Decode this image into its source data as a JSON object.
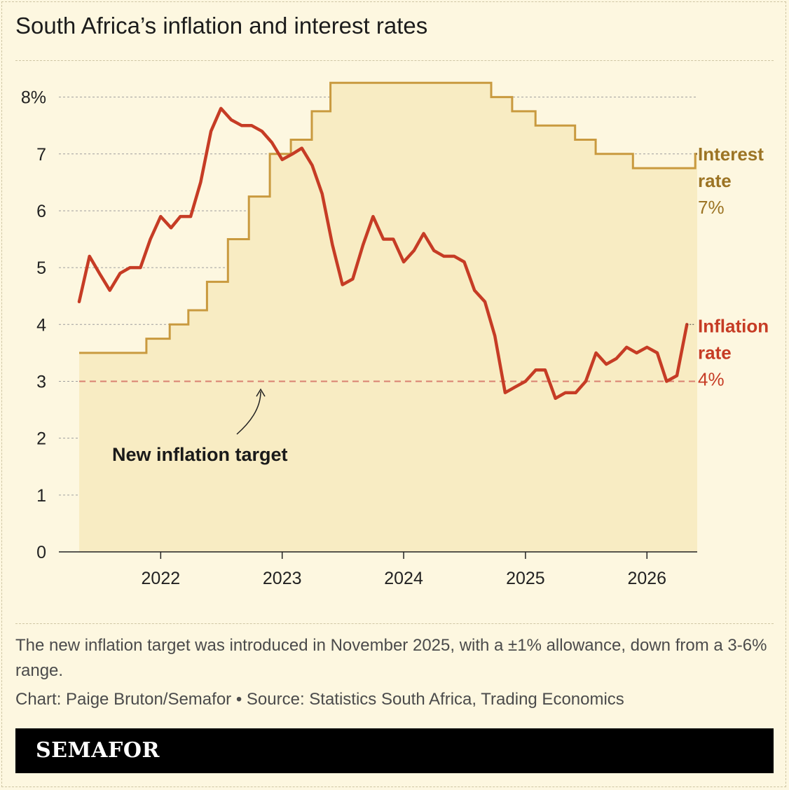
{
  "header": {
    "title": "South Africa’s inflation and interest rates"
  },
  "notes": {
    "description": "The new inflation target was introduced in November 2025, with a ±1% allowance, down from a 3-6% range.",
    "credit": "Chart: Paige Bruton/Semafor • Source: Statistics South Africa, Trading Economics"
  },
  "footer": {
    "logo": "SEMAFOR"
  },
  "chart_data": {
    "type": "line",
    "title": "South Africa’s inflation and interest rates",
    "xlabel": "",
    "ylabel": "",
    "x_ticks": [
      "2022",
      "2023",
      "2024",
      "2025",
      "2026"
    ],
    "y_ticks": [
      "0",
      "1",
      "2",
      "3",
      "4",
      "5",
      "6",
      "7",
      "8%"
    ],
    "ylim": [
      0,
      8.5
    ],
    "xlim": [
      "2021-03",
      "2026-06"
    ],
    "grid": true,
    "colors": {
      "interest": "#c99a3f",
      "interest_label": "#9c7424",
      "inflation": "#c63c25",
      "target": "#d98070",
      "area": "#f8ecc3"
    },
    "series": [
      {
        "name": "Interest rate",
        "label_lines": [
          "Interest",
          "rate"
        ],
        "end_label": "7%",
        "step": true,
        "points": [
          [
            "2021-05-01",
            3.5
          ],
          [
            "2021-11-19",
            3.75
          ],
          [
            "2022-01-28",
            4.0
          ],
          [
            "2022-03-25",
            4.25
          ],
          [
            "2022-05-20",
            4.75
          ],
          [
            "2022-07-22",
            5.5
          ],
          [
            "2022-09-23",
            6.25
          ],
          [
            "2022-11-25",
            7.0
          ],
          [
            "2023-01-27",
            7.25
          ],
          [
            "2023-03-31",
            7.75
          ],
          [
            "2023-05-26",
            8.25
          ],
          [
            "2024-09-20",
            8.0
          ],
          [
            "2024-11-22",
            7.75
          ],
          [
            "2025-01-31",
            7.5
          ],
          [
            "2025-05-30",
            7.25
          ],
          [
            "2025-07-31",
            7.0
          ],
          [
            "2025-11-20",
            6.75
          ],
          [
            "2026-05-26",
            7.0
          ],
          [
            "2026-06-01",
            7.0
          ]
        ]
      },
      {
        "name": "Inflation rate",
        "label_lines": [
          "Inflation",
          "rate"
        ],
        "end_label": "4%",
        "step": false,
        "points": [
          [
            "2021-05-01",
            4.4
          ],
          [
            "2021-06-01",
            5.2
          ],
          [
            "2021-07-01",
            4.9
          ],
          [
            "2021-08-01",
            4.6
          ],
          [
            "2021-09-01",
            4.9
          ],
          [
            "2021-10-01",
            5.0
          ],
          [
            "2021-11-01",
            5.0
          ],
          [
            "2021-12-01",
            5.5
          ],
          [
            "2022-01-01",
            5.9
          ],
          [
            "2022-02-01",
            5.7
          ],
          [
            "2022-03-01",
            5.9
          ],
          [
            "2022-04-01",
            5.9
          ],
          [
            "2022-05-01",
            6.5
          ],
          [
            "2022-06-01",
            7.4
          ],
          [
            "2022-07-01",
            7.8
          ],
          [
            "2022-08-01",
            7.6
          ],
          [
            "2022-09-01",
            7.5
          ],
          [
            "2022-10-01",
            7.5
          ],
          [
            "2022-11-01",
            7.4
          ],
          [
            "2022-12-01",
            7.2
          ],
          [
            "2023-01-01",
            6.9
          ],
          [
            "2023-02-01",
            7.0
          ],
          [
            "2023-03-01",
            7.1
          ],
          [
            "2023-04-01",
            6.8
          ],
          [
            "2023-05-01",
            6.3
          ],
          [
            "2023-06-01",
            5.4
          ],
          [
            "2023-07-01",
            4.7
          ],
          [
            "2023-08-01",
            4.8
          ],
          [
            "2023-09-01",
            5.4
          ],
          [
            "2023-10-01",
            5.9
          ],
          [
            "2023-11-01",
            5.5
          ],
          [
            "2023-12-01",
            5.5
          ],
          [
            "2024-01-01",
            5.1
          ],
          [
            "2024-02-01",
            5.3
          ],
          [
            "2024-03-01",
            5.6
          ],
          [
            "2024-04-01",
            5.3
          ],
          [
            "2024-05-01",
            5.2
          ],
          [
            "2024-06-01",
            5.2
          ],
          [
            "2024-07-01",
            5.1
          ],
          [
            "2024-08-01",
            4.6
          ],
          [
            "2024-09-01",
            4.4
          ],
          [
            "2024-10-01",
            3.8
          ],
          [
            "2024-11-01",
            2.8
          ],
          [
            "2024-12-01",
            2.9
          ],
          [
            "2025-01-01",
            3.0
          ],
          [
            "2025-02-01",
            3.2
          ],
          [
            "2025-03-01",
            3.2
          ],
          [
            "2025-04-01",
            2.7
          ],
          [
            "2025-05-01",
            2.8
          ],
          [
            "2025-06-01",
            2.8
          ],
          [
            "2025-07-01",
            3.0
          ],
          [
            "2025-08-01",
            3.5
          ],
          [
            "2025-09-01",
            3.3
          ],
          [
            "2025-10-01",
            3.4
          ],
          [
            "2025-11-01",
            3.6
          ],
          [
            "2025-12-01",
            3.5
          ],
          [
            "2026-01-01",
            3.6
          ],
          [
            "2026-02-01",
            3.5
          ],
          [
            "2026-03-01",
            3.0
          ],
          [
            "2026-04-01",
            3.1
          ],
          [
            "2026-05-01",
            4.0
          ]
        ]
      }
    ],
    "target": {
      "value": 3.0,
      "label": "New inflation target"
    }
  }
}
